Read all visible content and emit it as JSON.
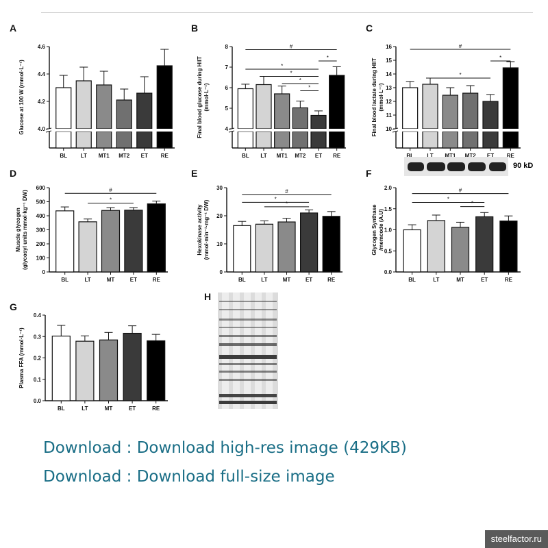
{
  "panels": [
    {
      "id": "A",
      "label": "A",
      "type": "bar",
      "categories": [
        "BL",
        "LT",
        "MT1",
        "MT2",
        "ET",
        "RE"
      ],
      "values": [
        4.3,
        4.35,
        4.32,
        4.21,
        4.26,
        4.46
      ],
      "errors": [
        0.09,
        0.1,
        0.1,
        0.08,
        0.12,
        0.12
      ],
      "ylim": [
        4.0,
        4.6
      ],
      "yticks": [
        "4.0",
        "4.2",
        "4.4",
        "4.6"
      ],
      "yticks_val": [
        4.0,
        4.2,
        4.4,
        4.6
      ],
      "axis_break": true,
      "ylabel": [
        "Glucose at 100 W (mmol·L⁻¹)"
      ],
      "brackets": []
    },
    {
      "id": "B",
      "label": "B",
      "type": "bar",
      "categories": [
        "BL",
        "LT",
        "MT1",
        "MT2",
        "ET",
        "RE"
      ],
      "values": [
        5.95,
        6.15,
        5.7,
        5.02,
        4.65,
        6.6
      ],
      "errors": [
        0.22,
        0.4,
        0.38,
        0.33,
        0.22,
        0.42
      ],
      "ylim": [
        4,
        8
      ],
      "yticks": [
        "4",
        "5",
        "6",
        "7",
        "8"
      ],
      "yticks_val": [
        4,
        5,
        6,
        7,
        8
      ],
      "axis_break": true,
      "ylabel": [
        "Final blood glucose during HIIT",
        "(mmol·L⁻¹)"
      ],
      "brackets": [
        {
          "from": 0,
          "to": 5,
          "mark": "#",
          "y": 7.85
        },
        {
          "from": 4,
          "to": 5,
          "mark": "*",
          "y": 7.3
        },
        {
          "from": 0,
          "to": 4,
          "mark": "*",
          "y": 6.9
        },
        {
          "from": 1,
          "to": 4,
          "mark": "*",
          "y": 6.55
        },
        {
          "from": 2,
          "to": 4,
          "mark": "*",
          "y": 6.2
        },
        {
          "from": 3,
          "to": 4,
          "mark": "*",
          "y": 5.85
        }
      ]
    },
    {
      "id": "C",
      "label": "C",
      "type": "bar",
      "categories": [
        "BL",
        "LT",
        "MT1",
        "MT2",
        "ET",
        "RE"
      ],
      "values": [
        13.0,
        13.25,
        12.45,
        12.6,
        12.0,
        14.45
      ],
      "errors": [
        0.45,
        0.45,
        0.55,
        0.55,
        0.5,
        0.45
      ],
      "ylim": [
        10,
        16
      ],
      "yticks": [
        "10",
        "11",
        "12",
        "13",
        "14",
        "15",
        "16"
      ],
      "yticks_val": [
        10,
        11,
        12,
        13,
        14,
        15,
        16
      ],
      "axis_break": true,
      "ylabel": [
        "Final blood lactate during HIIT",
        "(mmol·L⁻¹)"
      ],
      "brackets": [
        {
          "from": 0,
          "to": 5,
          "mark": "#",
          "y": 15.8
        },
        {
          "from": 4,
          "to": 5,
          "mark": "*",
          "y": 14.95
        },
        {
          "from": 1,
          "to": 4,
          "mark": "*",
          "y": 13.7
        }
      ]
    },
    {
      "id": "D",
      "label": "D",
      "type": "bar",
      "categories": [
        "BL",
        "LT",
        "MT",
        "ET",
        "RE"
      ],
      "values": [
        435,
        357,
        438,
        440,
        485
      ],
      "errors": [
        28,
        20,
        20,
        18,
        20
      ],
      "ylim": [
        0,
        600
      ],
      "yticks": [
        "0",
        "100",
        "200",
        "300",
        "400",
        "500",
        "600"
      ],
      "yticks_val": [
        0,
        100,
        200,
        300,
        400,
        500,
        600
      ],
      "axis_break": false,
      "ylabel": [
        "Muscle glycogen",
        "(glycosyl units mmol·kg⁻¹ DW)"
      ],
      "brackets": [
        {
          "from": 0,
          "to": 4,
          "mark": "#",
          "y": 560
        },
        {
          "from": 1,
          "to": 3,
          "mark": "*",
          "y": 490
        }
      ]
    },
    {
      "id": "E",
      "label": "E",
      "type": "bar",
      "categories": [
        "BL",
        "LT",
        "MT",
        "ET",
        "RE"
      ],
      "values": [
        16.5,
        17.0,
        17.8,
        21.0,
        19.8
      ],
      "errors": [
        1.5,
        1.2,
        1.3,
        1.1,
        1.7
      ],
      "ylim": [
        0,
        30
      ],
      "yticks": [
        "0",
        "10",
        "20",
        "30"
      ],
      "yticks_val": [
        0,
        10,
        20,
        30
      ],
      "axis_break": false,
      "ylabel": [
        "Hexokinase activity",
        "(mmol·min⁻¹·mg⁻¹ DW)"
      ],
      "brackets": [
        {
          "from": 0,
          "to": 4,
          "mark": "#",
          "y": 27.6
        },
        {
          "from": 0,
          "to": 3,
          "mark": "*",
          "y": 24.8
        },
        {
          "from": 1,
          "to": 3,
          "mark": "*",
          "y": 23.2
        }
      ]
    },
    {
      "id": "F",
      "label": "F",
      "type": "bar",
      "categories": [
        "BL",
        "LT",
        "MT",
        "ET",
        "RE"
      ],
      "values": [
        1.0,
        1.22,
        1.06,
        1.31,
        1.21
      ],
      "errors": [
        0.12,
        0.13,
        0.12,
        0.1,
        0.12
      ],
      "ylim": [
        0,
        2.0
      ],
      "yticks": [
        "0.0",
        "0.5",
        "1.0",
        "1.5",
        "2.0"
      ],
      "yticks_val": [
        0,
        0.5,
        1.0,
        1.5,
        2.0
      ],
      "axis_break": false,
      "ylabel": [
        "Glycogen Synthase",
        "/memcode (A.U)"
      ],
      "brackets": [
        {
          "from": 0,
          "to": 4,
          "mark": "#",
          "y": 1.86
        },
        {
          "from": 0,
          "to": 3,
          "mark": "*",
          "y": 1.65
        },
        {
          "from": 2,
          "to": 3,
          "mark": "*",
          "y": 1.55
        }
      ],
      "blot_label": "90 kD"
    },
    {
      "id": "G",
      "label": "G",
      "type": "bar",
      "categories": [
        "BL",
        "LT",
        "MT",
        "ET",
        "RE"
      ],
      "values": [
        0.302,
        0.278,
        0.284,
        0.315,
        0.28
      ],
      "errors": [
        0.05,
        0.025,
        0.035,
        0.035,
        0.03
      ],
      "ylim": [
        0,
        0.4
      ],
      "yticks": [
        "0.0",
        "0.1",
        "0.2",
        "0.3",
        "0.4"
      ],
      "yticks_val": [
        0,
        0.1,
        0.2,
        0.3,
        0.4
      ],
      "axis_break": false,
      "ylabel": [
        "Plasma FFA (mmol·L⁻¹)"
      ],
      "brackets": []
    }
  ],
  "gel_label": "H",
  "links": [
    "Download : Download high-res image (429KB)",
    "Download : Download full-size image"
  ],
  "watermark": "steelfactor.ru",
  "colors": {
    "BL": "#ffffff",
    "LT": "#d4d4d4",
    "MT1": "#8a8a8a",
    "MT2": "#707070",
    "MT": "#8a8a8a",
    "ET": "#3a3a3a",
    "RE": "#000000",
    "link": "#1a6e86"
  },
  "chart_data": [
    {
      "type": "bar",
      "label": "A",
      "categories": [
        "BL",
        "LT",
        "MT1",
        "MT2",
        "ET",
        "RE"
      ],
      "values": [
        4.3,
        4.35,
        4.32,
        4.21,
        4.26,
        4.46
      ],
      "ylabel": "Glucose at 100 W (mmol·L⁻¹)",
      "ylim": [
        4.0,
        4.6
      ]
    },
    {
      "type": "bar",
      "label": "B",
      "categories": [
        "BL",
        "LT",
        "MT1",
        "MT2",
        "ET",
        "RE"
      ],
      "values": [
        5.95,
        6.15,
        5.7,
        5.02,
        4.65,
        6.6
      ],
      "ylabel": "Final blood glucose during HIIT (mmol·L⁻¹)",
      "ylim": [
        4,
        8
      ]
    },
    {
      "type": "bar",
      "label": "C",
      "categories": [
        "BL",
        "LT",
        "MT1",
        "MT2",
        "ET",
        "RE"
      ],
      "values": [
        13.0,
        13.25,
        12.45,
        12.6,
        12.0,
        14.45
      ],
      "ylabel": "Final blood lactate during HIIT (mmol·L⁻¹)",
      "ylim": [
        10,
        16
      ]
    },
    {
      "type": "bar",
      "label": "D",
      "categories": [
        "BL",
        "LT",
        "MT",
        "ET",
        "RE"
      ],
      "values": [
        435,
        357,
        438,
        440,
        485
      ],
      "ylabel": "Muscle glycogen (glycosyl units mmol·kg⁻¹ DW)",
      "ylim": [
        0,
        600
      ]
    },
    {
      "type": "bar",
      "label": "E",
      "categories": [
        "BL",
        "LT",
        "MT",
        "ET",
        "RE"
      ],
      "values": [
        16.5,
        17.0,
        17.8,
        21.0,
        19.8
      ],
      "ylabel": "Hexokinase activity (mmol·min⁻¹·mg⁻¹ DW)",
      "ylim": [
        0,
        30
      ]
    },
    {
      "type": "bar",
      "label": "F",
      "categories": [
        "BL",
        "LT",
        "MT",
        "ET",
        "RE"
      ],
      "values": [
        1.0,
        1.22,
        1.06,
        1.31,
        1.21
      ],
      "ylabel": "Glycogen Synthase /memcode (A.U)",
      "ylim": [
        0,
        2.0
      ]
    },
    {
      "type": "bar",
      "label": "G",
      "categories": [
        "BL",
        "LT",
        "MT",
        "ET",
        "RE"
      ],
      "values": [
        0.302,
        0.278,
        0.284,
        0.315,
        0.28
      ],
      "ylabel": "Plasma FFA (mmol·L⁻¹)",
      "ylim": [
        0,
        0.4
      ]
    }
  ]
}
